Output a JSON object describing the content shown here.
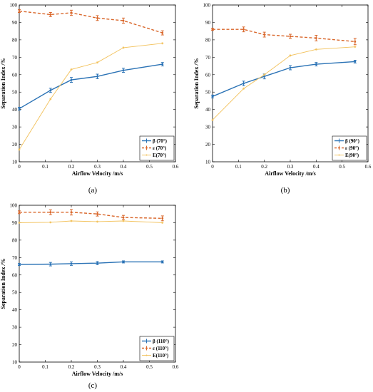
{
  "figure": {
    "panel_letters": [
      "(a)",
      "(b)",
      "(c)"
    ]
  },
  "colors": {
    "beta": "#2a72b5",
    "epsilon": "#d9662a",
    "E": "#f2c15a"
  },
  "chart_data": [
    {
      "type": "line",
      "panel": "(a)",
      "xlabel": "Airflow Velocity /m/s",
      "ylabel": "Separation Index /%",
      "xlim": [
        0,
        0.6
      ],
      "ylim": [
        10,
        100
      ],
      "x_ticks": [
        "0",
        "0.1",
        "0.2",
        "0.3",
        "0.4",
        "0.5",
        "0.6"
      ],
      "y_ticks": [
        "10",
        "20",
        "30",
        "40",
        "50",
        "60",
        "70",
        "80",
        "90",
        "100"
      ],
      "x": [
        0,
        0.12,
        0.2,
        0.3,
        0.4,
        0.55
      ],
      "legend_position": "bottom-right",
      "series": [
        {
          "name": "β (70°)",
          "key": "beta",
          "style": "solid",
          "values": [
            40.5,
            51,
            57,
            59,
            62.5,
            66
          ],
          "err": [
            0.8,
            1.2,
            1.4,
            1.3,
            1.2,
            1.0
          ]
        },
        {
          "name": "ε (70°)",
          "key": "epsilon",
          "style": "dashed",
          "values": [
            96.5,
            94.5,
            95.5,
            92.5,
            91,
            84
          ],
          "err": [
            0.8,
            1.2,
            1.5,
            1.4,
            1.5,
            1.2
          ]
        },
        {
          "name": "E(70°)",
          "key": "E",
          "style": "solid",
          "values": [
            17,
            46,
            63,
            67,
            75.5,
            78
          ],
          "err": []
        }
      ]
    },
    {
      "type": "line",
      "panel": "(b)",
      "xlabel": "Airflow Velocity /m/s",
      "ylabel": "Separation Index /%",
      "xlim": [
        0,
        0.6
      ],
      "ylim": [
        10,
        100
      ],
      "x_ticks": [
        "0",
        "0.1",
        "0.2",
        "0.3",
        "0.4",
        "0.5",
        "0.6"
      ],
      "y_ticks": [
        "10",
        "20",
        "30",
        "40",
        "50",
        "60",
        "70",
        "80",
        "90",
        "100"
      ],
      "x": [
        0,
        0.12,
        0.2,
        0.3,
        0.4,
        0.55
      ],
      "legend_position": "bottom-right",
      "series": [
        {
          "name": "β (90°)",
          "key": "beta",
          "style": "solid",
          "values": [
            47.5,
            55,
            59,
            64,
            66,
            67.5
          ],
          "err": [
            0.8,
            1.3,
            1.4,
            1.2,
            1.0,
            0.8
          ]
        },
        {
          "name": "ε (90°)",
          "key": "epsilon",
          "style": "dashed",
          "values": [
            86,
            86,
            83,
            82,
            81,
            79
          ],
          "err": [
            0.6,
            1.4,
            1.4,
            1.2,
            1.6,
            1.8
          ]
        },
        {
          "name": "E(90°)",
          "key": "E",
          "style": "solid",
          "values": [
            34,
            52,
            60,
            71,
            74.5,
            76
          ],
          "err": []
        }
      ]
    },
    {
      "type": "line",
      "panel": "(c)",
      "xlabel": "Airflow Velocity /m/s",
      "ylabel": "Separation Index /%",
      "xlim": [
        0,
        0.6
      ],
      "ylim": [
        10,
        100
      ],
      "x_ticks": [
        "0",
        "0.1",
        "0.2",
        "0.3",
        "0.4",
        "0.5",
        "0.6"
      ],
      "y_ticks": [
        "10",
        "20",
        "30",
        "40",
        "50",
        "60",
        "70",
        "80",
        "90",
        "100"
      ],
      "x": [
        0,
        0.12,
        0.2,
        0.3,
        0.4,
        0.55
      ],
      "legend_position": "bottom-right",
      "series": [
        {
          "name": "β (110°)",
          "key": "beta",
          "style": "solid",
          "values": [
            66,
            66.2,
            66.5,
            66.8,
            67.5,
            67.5
          ],
          "err": [
            0.6,
            1.0,
            1.0,
            0.9,
            0.6,
            0.6
          ]
        },
        {
          "name": "ε (110°)",
          "key": "epsilon",
          "style": "dashed",
          "values": [
            96,
            96,
            96,
            95,
            93,
            92.5
          ],
          "err": [
            0.8,
            1.4,
            1.6,
            1.2,
            1.2,
            1.4
          ]
        },
        {
          "name": "E(110°)",
          "key": "E",
          "style": "solid",
          "values": [
            90,
            90.2,
            91,
            90.6,
            91,
            90
          ],
          "err": []
        }
      ]
    }
  ]
}
